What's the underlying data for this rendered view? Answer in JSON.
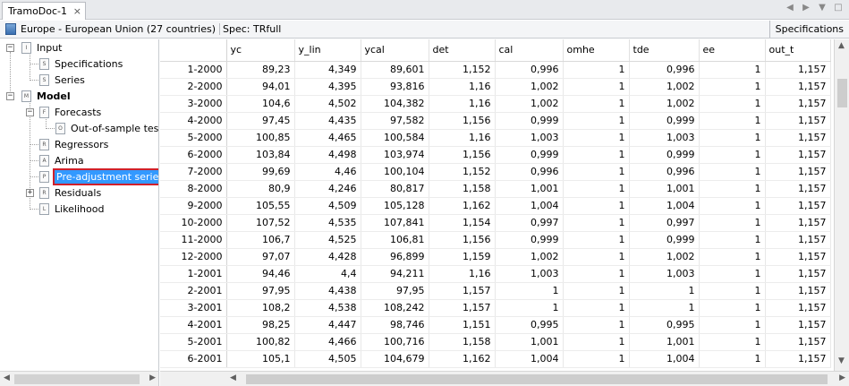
{
  "tab": {
    "title": "TramoDoc-1",
    "close": "×"
  },
  "tab_nav": {
    "prev": "◀",
    "next": "▶",
    "menu": "▼",
    "max": "□"
  },
  "infobar": {
    "series": "Europe - European Union (27 countries)",
    "spec": "Spec: TRfull",
    "button": "Specifications"
  },
  "tree": {
    "input": "Input",
    "specifications": "Specifications",
    "series": "Series",
    "model": "Model",
    "forecasts": "Forecasts",
    "out_of_sample": "Out-of-sample test",
    "regressors": "Regressors",
    "arima": "Arima",
    "preadjustment": "Pre-adjustment series",
    "residuals": "Residuals",
    "likelihood": "Likelihood"
  },
  "table": {
    "columns": [
      "yc",
      "y_lin",
      "ycal",
      "det",
      "cal",
      "omhe",
      "tde",
      "ee",
      "out_t"
    ],
    "rows": [
      [
        "1-2000",
        "89,23",
        "4,349",
        "89,601",
        "1,152",
        "0,996",
        "1",
        "0,996",
        "1",
        "1,157"
      ],
      [
        "2-2000",
        "94,01",
        "4,395",
        "93,816",
        "1,16",
        "1,002",
        "1",
        "1,002",
        "1",
        "1,157"
      ],
      [
        "3-2000",
        "104,6",
        "4,502",
        "104,382",
        "1,16",
        "1,002",
        "1",
        "1,002",
        "1",
        "1,157"
      ],
      [
        "4-2000",
        "97,45",
        "4,435",
        "97,582",
        "1,156",
        "0,999",
        "1",
        "0,999",
        "1",
        "1,157"
      ],
      [
        "5-2000",
        "100,85",
        "4,465",
        "100,584",
        "1,16",
        "1,003",
        "1",
        "1,003",
        "1",
        "1,157"
      ],
      [
        "6-2000",
        "103,84",
        "4,498",
        "103,974",
        "1,156",
        "0,999",
        "1",
        "0,999",
        "1",
        "1,157"
      ],
      [
        "7-2000",
        "99,69",
        "4,46",
        "100,104",
        "1,152",
        "0,996",
        "1",
        "0,996",
        "1",
        "1,157"
      ],
      [
        "8-2000",
        "80,9",
        "4,246",
        "80,817",
        "1,158",
        "1,001",
        "1",
        "1,001",
        "1",
        "1,157"
      ],
      [
        "9-2000",
        "105,55",
        "4,509",
        "105,128",
        "1,162",
        "1,004",
        "1",
        "1,004",
        "1",
        "1,157"
      ],
      [
        "10-2000",
        "107,52",
        "4,535",
        "107,841",
        "1,154",
        "0,997",
        "1",
        "0,997",
        "1",
        "1,157"
      ],
      [
        "11-2000",
        "106,7",
        "4,525",
        "106,81",
        "1,156",
        "0,999",
        "1",
        "0,999",
        "1",
        "1,157"
      ],
      [
        "12-2000",
        "97,07",
        "4,428",
        "96,899",
        "1,159",
        "1,002",
        "1",
        "1,002",
        "1",
        "1,157"
      ],
      [
        "1-2001",
        "94,46",
        "4,4",
        "94,211",
        "1,16",
        "1,003",
        "1",
        "1,003",
        "1",
        "1,157"
      ],
      [
        "2-2001",
        "97,95",
        "4,438",
        "97,95",
        "1,157",
        "1",
        "1",
        "1",
        "1",
        "1,157"
      ],
      [
        "3-2001",
        "108,2",
        "4,538",
        "108,242",
        "1,157",
        "1",
        "1",
        "1",
        "1",
        "1,157"
      ],
      [
        "4-2001",
        "98,25",
        "4,447",
        "98,746",
        "1,151",
        "0,995",
        "1",
        "0,995",
        "1",
        "1,157"
      ],
      [
        "5-2001",
        "100,82",
        "4,466",
        "100,716",
        "1,158",
        "1,001",
        "1",
        "1,001",
        "1",
        "1,157"
      ],
      [
        "6-2001",
        "105,1",
        "4,505",
        "104,679",
        "1,162",
        "1,004",
        "1",
        "1,004",
        "1",
        "1,157"
      ]
    ]
  },
  "scroll": {
    "left": "◀",
    "right": "▶",
    "up": "▲",
    "down": "▼"
  },
  "colors": {
    "selection": "#3399ff",
    "highlight_border": "#d0202a"
  }
}
